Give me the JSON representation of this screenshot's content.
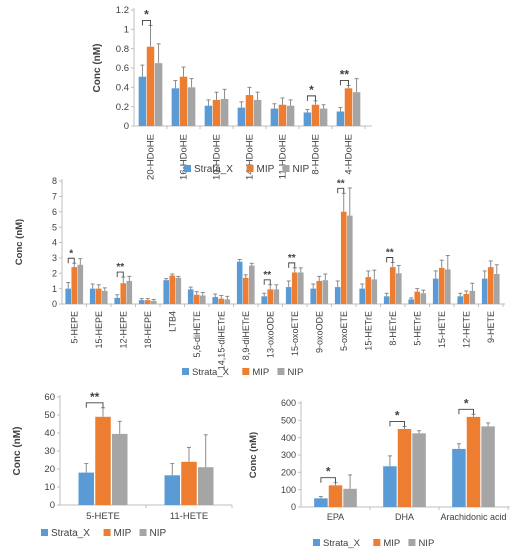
{
  "colors": {
    "Strata_X": "#5b9bd5",
    "MIP": "#ed7d31",
    "NIP": "#a5a5a5",
    "axis": "#bfbfbf",
    "text": "#404040",
    "error": "#7f7f7f"
  },
  "chart_data": [
    {
      "type": "bar",
      "ylabel": "Conc (nM)",
      "ylim": [
        0,
        1.2
      ],
      "yticks": [
        "0",
        "0.2",
        "0.4",
        "0.6",
        "0.8",
        "1",
        "1.2"
      ],
      "legend_position": "bottom",
      "categories": [
        "20-HDoHE",
        "16-HDoHE",
        "10-HDoHE",
        "14-HDoHE",
        "11-HDoHE",
        "8-HDoHE",
        "4-HDoHE"
      ],
      "series": [
        {
          "name": "Strata_X",
          "values": [
            0.51,
            0.39,
            0.21,
            0.19,
            0.18,
            0.14,
            0.15
          ],
          "errors": [
            0.12,
            0.08,
            0.06,
            0.06,
            0.05,
            0.03,
            0.04
          ]
        },
        {
          "name": "MIP",
          "values": [
            0.82,
            0.51,
            0.27,
            0.32,
            0.22,
            0.22,
            0.39
          ],
          "errors": [
            0.22,
            0.1,
            0.08,
            0.08,
            0.07,
            0.04,
            0.03
          ]
        },
        {
          "name": "NIP",
          "values": [
            0.65,
            0.4,
            0.28,
            0.27,
            0.21,
            0.18,
            0.35
          ],
          "errors": [
            0.2,
            0.09,
            0.1,
            0.08,
            0.06,
            0.04,
            0.14
          ]
        }
      ],
      "significance": [
        {
          "category": 0,
          "label": "*"
        },
        {
          "category": 5,
          "label": "*"
        },
        {
          "category": 6,
          "label": "**"
        }
      ]
    },
    {
      "type": "bar",
      "ylabel": "Conc (nM)",
      "ylim": [
        0,
        8
      ],
      "yticks": [
        "0",
        "1",
        "2",
        "3",
        "4",
        "5",
        "6",
        "7",
        "8"
      ],
      "legend_position": "bottom",
      "categories": [
        "5-HEPE",
        "15-HEPE",
        "12-HEPE",
        "18-HEPE",
        "LTB4",
        "5,6-diHETE",
        "14,15-diHETrE",
        "8,9-diHETrE",
        "13-oxoODE",
        "15-oxoETE",
        "9-oxoODE",
        "5-oxoETE",
        "15-HETrE",
        "8-HETrE",
        "5-HETrE",
        "15-HETE",
        "12-HETE",
        "9-HETE"
      ],
      "series": [
        {
          "name": "Strata_X",
          "values": [
            1.0,
            1.0,
            0.4,
            0.25,
            1.55,
            0.95,
            0.45,
            2.75,
            0.5,
            1.1,
            1.0,
            1.1,
            1.0,
            0.5,
            0.3,
            1.65,
            0.5,
            1.65
          ],
          "errors": [
            0.4,
            0.3,
            0.2,
            0.1,
            0.1,
            0.15,
            0.2,
            0.15,
            0.2,
            0.4,
            0.3,
            0.4,
            0.3,
            0.2,
            0.1,
            0.5,
            0.2,
            0.5
          ]
        },
        {
          "name": "MIP",
          "values": [
            2.4,
            1.0,
            1.35,
            0.25,
            1.85,
            0.6,
            0.35,
            1.7,
            0.95,
            2.05,
            1.5,
            6.0,
            1.75,
            2.4,
            0.8,
            2.35,
            0.65,
            2.4
          ],
          "errors": [
            0.25,
            0.25,
            0.4,
            0.1,
            0.1,
            0.2,
            0.2,
            0.2,
            0.3,
            0.3,
            0.3,
            1.2,
            0.4,
            0.3,
            0.2,
            0.5,
            0.2,
            0.4
          ]
        },
        {
          "name": "NIP",
          "values": [
            2.55,
            0.85,
            1.5,
            0.2,
            1.7,
            0.55,
            0.3,
            2.5,
            0.95,
            2.05,
            1.55,
            5.75,
            1.6,
            2.0,
            0.7,
            2.25,
            0.85,
            1.95
          ],
          "errors": [
            0.4,
            0.2,
            0.3,
            0.1,
            0.1,
            0.2,
            0.2,
            0.15,
            0.3,
            0.3,
            0.4,
            1.8,
            0.6,
            0.5,
            0.2,
            0.9,
            0.5,
            0.6
          ]
        }
      ],
      "significance": [
        {
          "category": 0,
          "label": "*"
        },
        {
          "category": 2,
          "label": "**"
        },
        {
          "category": 8,
          "label": "**"
        },
        {
          "category": 9,
          "label": "**"
        },
        {
          "category": 11,
          "label": "**"
        },
        {
          "category": 13,
          "label": "**"
        }
      ]
    },
    {
      "type": "bar",
      "ylabel": "Conc (nM)",
      "ylim": [
        0,
        60
      ],
      "yticks": [
        "0",
        "10",
        "20",
        "30",
        "40",
        "50",
        "60"
      ],
      "legend_position": "bottom",
      "categories": [
        "5-HETE",
        "11-HETE"
      ],
      "series": [
        {
          "name": "Strata_X",
          "values": [
            18,
            16.5
          ],
          "errors": [
            5,
            6.5
          ]
        },
        {
          "name": "MIP",
          "values": [
            49,
            24
          ],
          "errors": [
            5,
            8
          ]
        },
        {
          "name": "NIP",
          "values": [
            39.5,
            21
          ],
          "errors": [
            7,
            18
          ]
        }
      ],
      "significance": [
        {
          "category": 0,
          "label": "**"
        }
      ]
    },
    {
      "type": "bar",
      "ylabel": "Conc (nM)",
      "ylim": [
        0,
        600
      ],
      "yticks": [
        "0",
        "100",
        "200",
        "300",
        "400",
        "500",
        "600"
      ],
      "legend_position": "bottom",
      "categories": [
        "EPA",
        "DHA",
        "Arachidonic acid"
      ],
      "series": [
        {
          "name": "Strata_X",
          "values": [
            50,
            235,
            335
          ],
          "errors": [
            10,
            60,
            30
          ]
        },
        {
          "name": "MIP",
          "values": [
            125,
            450,
            520
          ],
          "errors": [
            15,
            15,
            15
          ]
        },
        {
          "name": "NIP",
          "values": [
            105,
            425,
            465
          ],
          "errors": [
            80,
            15,
            20
          ]
        }
      ],
      "significance": [
        {
          "category": 0,
          "label": "*"
        },
        {
          "category": 1,
          "label": "*"
        },
        {
          "category": 2,
          "label": "*"
        }
      ]
    }
  ]
}
